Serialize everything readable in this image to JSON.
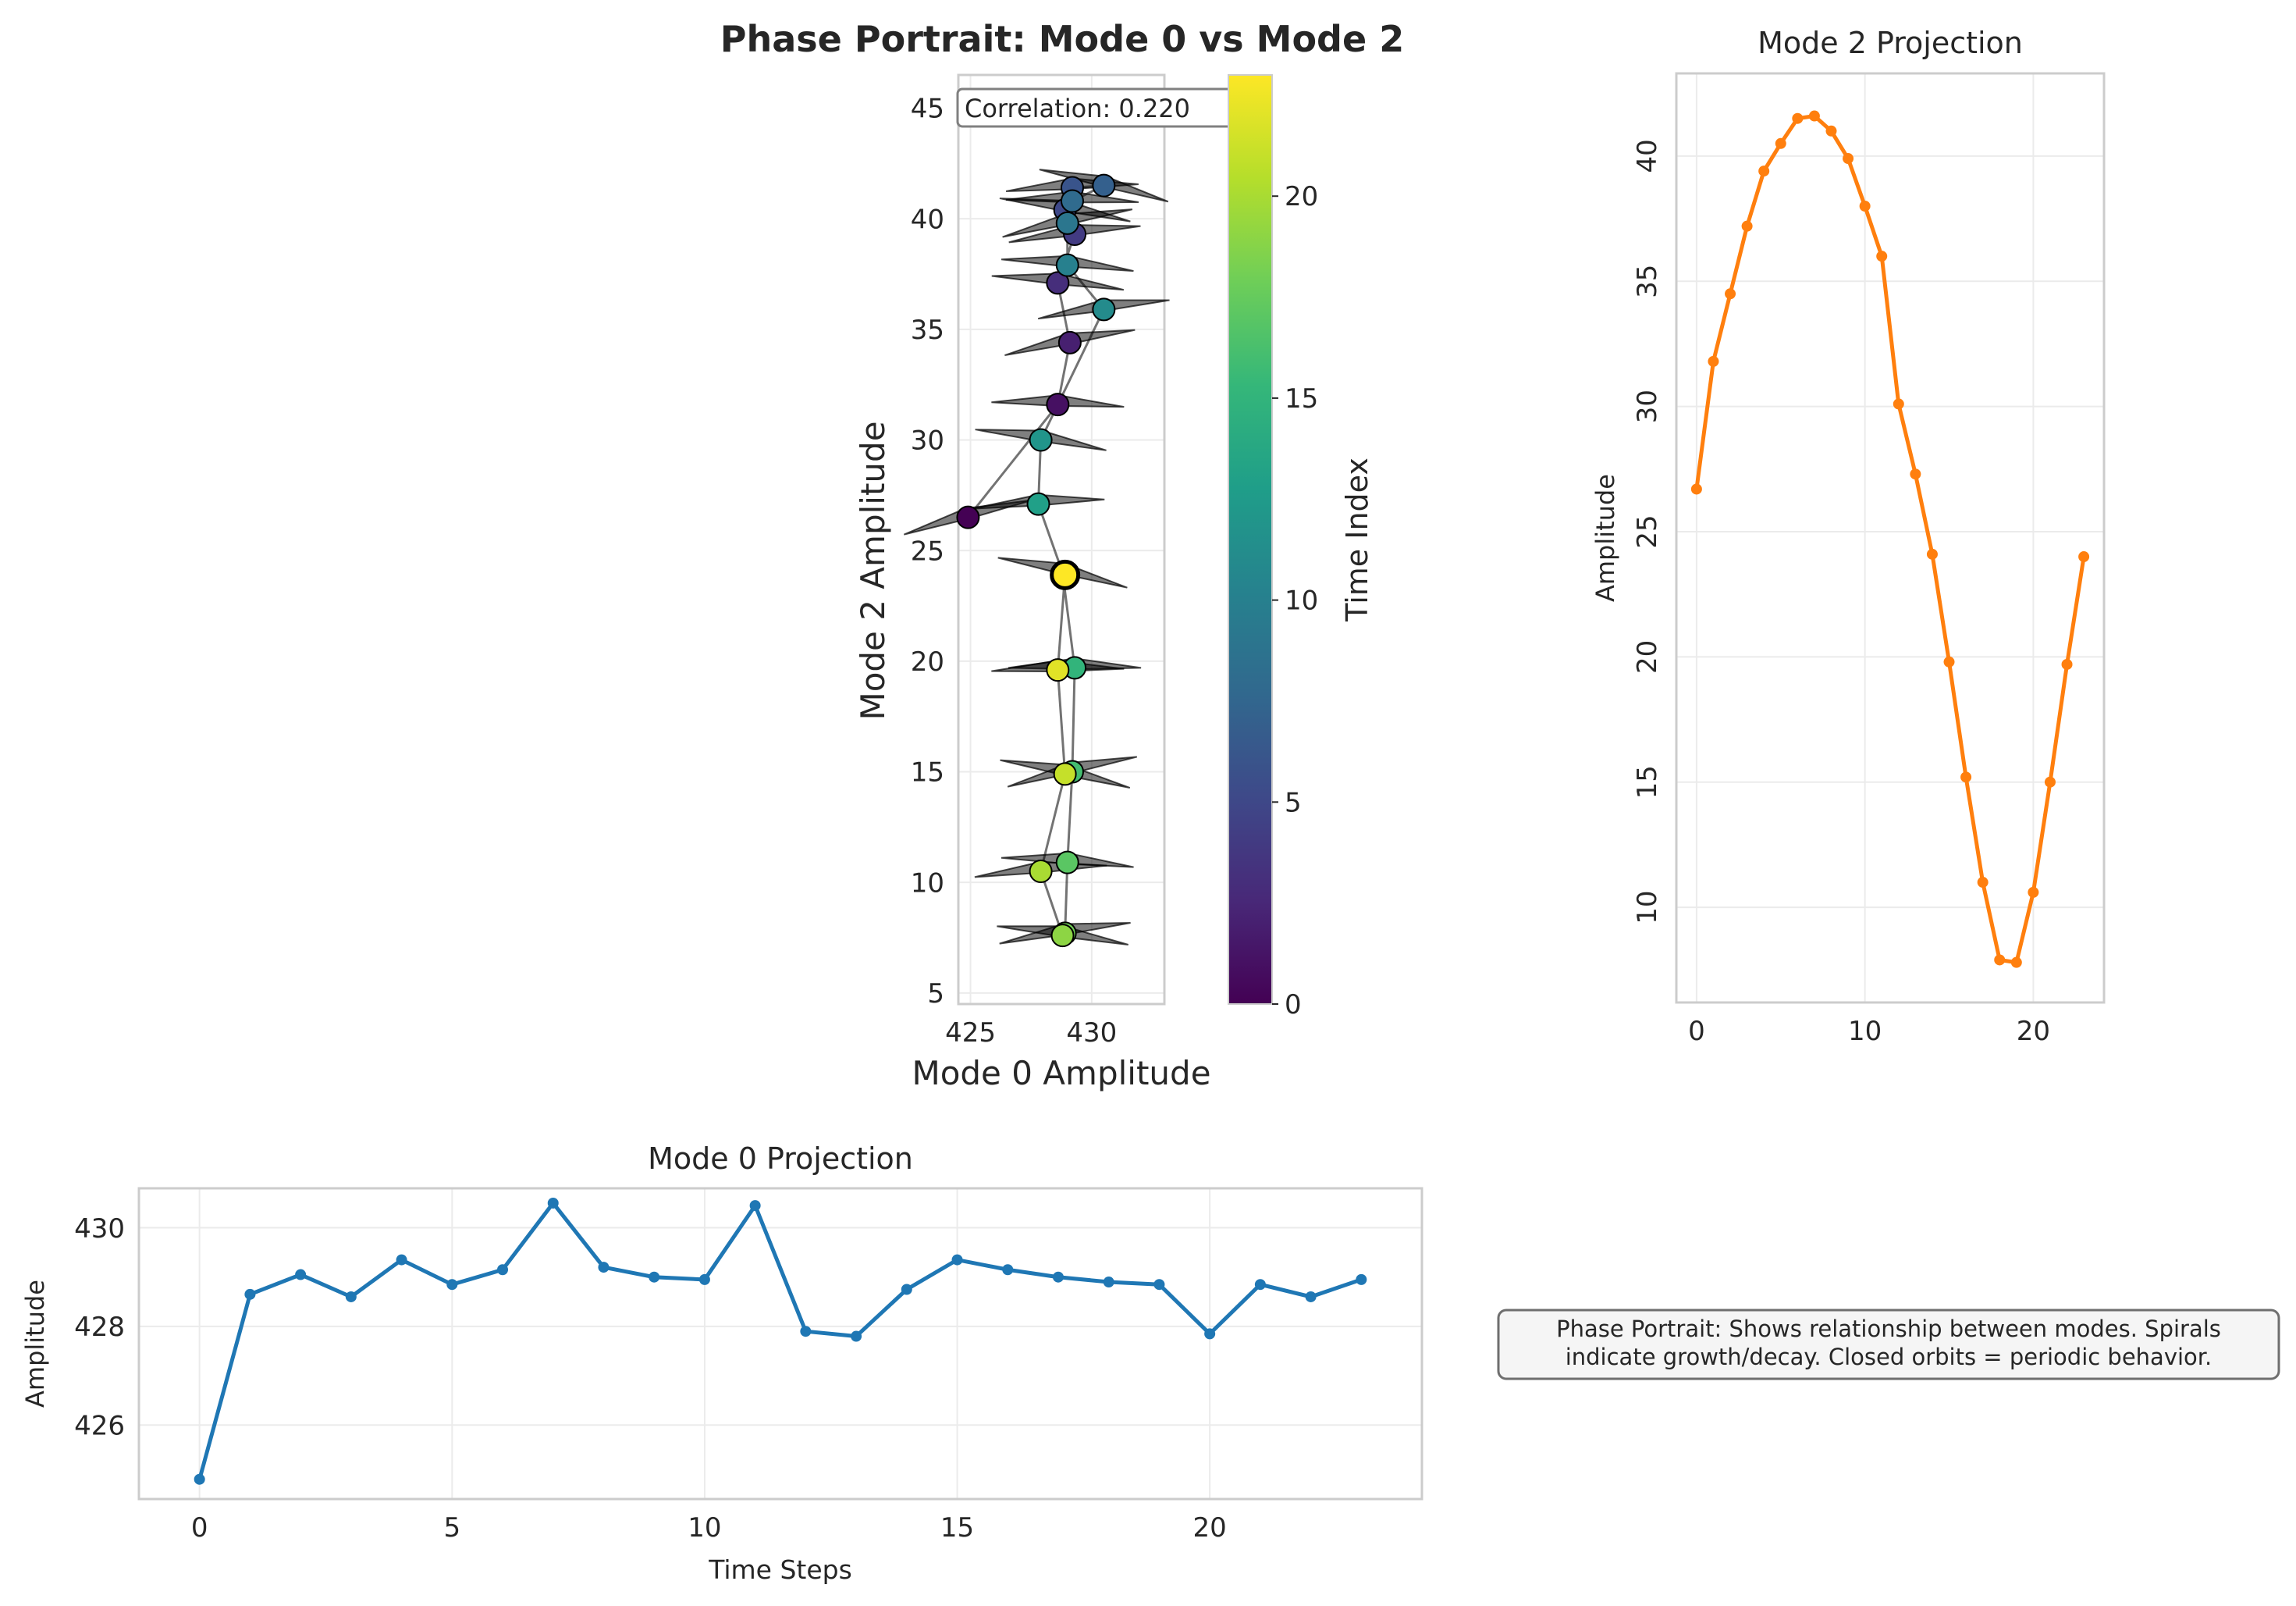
{
  "suptitle": "Phase Portrait: Mode 0 vs Mode 2",
  "colors": {
    "mode0_line": "#1f77b4",
    "mode2_line": "#ff7f0e",
    "grid": "#ebebeb",
    "spine": "#cccccc",
    "text": "#262626",
    "arrow": "#000000"
  },
  "colormap": "viridis",
  "chart_data": [
    {
      "id": "phase",
      "type": "scatter",
      "title": "",
      "xlabel": "Mode 0 Amplitude",
      "ylabel": "Mode 2 Amplitude",
      "xlim": [
        424.5,
        433
      ],
      "ylim": [
        4.5,
        46.5
      ],
      "xticks": [
        425,
        430
      ],
      "yticks": [
        5,
        10,
        15,
        20,
        25,
        30,
        35,
        40,
        45
      ],
      "grid": true,
      "points_connected_by_line": true,
      "annotation": "Correlation: 0.220",
      "x": [
        424.9,
        428.6,
        429.1,
        428.6,
        429.3,
        428.9,
        429.2,
        430.5,
        429.2,
        429.0,
        429.0,
        430.5,
        427.9,
        427.8,
        428.8,
        429.3,
        429.2,
        429.0,
        428.9,
        428.8,
        427.9,
        428.9,
        428.6,
        428.9
      ],
      "y": [
        26.5,
        31.6,
        34.4,
        37.1,
        39.3,
        40.4,
        41.4,
        41.5,
        40.8,
        39.8,
        37.9,
        35.9,
        30.0,
        27.1,
        24.0,
        19.7,
        15.0,
        10.9,
        7.7,
        7.6,
        10.5,
        14.9,
        19.6,
        23.9
      ],
      "c": [
        0,
        1,
        2,
        3,
        4,
        5,
        6,
        7,
        8,
        9,
        10,
        11,
        12,
        13,
        14,
        15,
        16,
        17,
        18,
        19,
        20,
        21,
        22,
        23
      ]
    },
    {
      "id": "colorbar",
      "type": "heatmap",
      "label": "Time Index",
      "range": [
        0,
        23
      ],
      "ticks": [
        0,
        5,
        10,
        15,
        20
      ]
    },
    {
      "id": "mode2",
      "type": "line",
      "title": "Mode 2 Projection",
      "xlabel": "",
      "ylabel": "Amplitude",
      "xlim": [
        -1.2,
        24.2
      ],
      "ylim": [
        6.2,
        43.3
      ],
      "xticks": [
        0,
        10,
        20
      ],
      "yticks": [
        10,
        15,
        20,
        25,
        30,
        35,
        40
      ],
      "grid": true,
      "x": [
        0,
        1,
        2,
        3,
        4,
        5,
        6,
        7,
        8,
        9,
        10,
        11,
        12,
        13,
        14,
        15,
        16,
        17,
        18,
        19,
        20,
        21,
        22,
        23
      ],
      "values": [
        26.7,
        31.8,
        34.5,
        37.2,
        39.4,
        40.5,
        41.5,
        41.6,
        41.0,
        39.9,
        38.0,
        36.0,
        30.1,
        27.3,
        24.1,
        19.8,
        15.2,
        11.0,
        7.9,
        7.8,
        10.6,
        15.0,
        19.7,
        24.0
      ]
    },
    {
      "id": "mode0",
      "type": "line",
      "title": "Mode 0 Projection",
      "xlabel": "Time Steps",
      "ylabel": "Amplitude",
      "xlim": [
        -1.2,
        24.2
      ],
      "ylim": [
        424.5,
        430.8
      ],
      "xticks": [
        0,
        5,
        10,
        15,
        20
      ],
      "yticks": [
        426,
        428,
        430
      ],
      "grid": true,
      "x": [
        0,
        1,
        2,
        3,
        4,
        5,
        6,
        7,
        8,
        9,
        10,
        11,
        12,
        13,
        14,
        15,
        16,
        17,
        18,
        19,
        20,
        21,
        22,
        23
      ],
      "values": [
        424.9,
        428.65,
        429.05,
        428.6,
        429.35,
        428.85,
        429.15,
        430.5,
        429.2,
        429.0,
        428.95,
        430.45,
        427.9,
        427.8,
        428.75,
        429.35,
        429.15,
        429.0,
        428.9,
        428.85,
        427.85,
        428.85,
        428.6,
        428.95
      ]
    }
  ],
  "note_box": {
    "line1": "Phase Portrait: Shows relationship between modes. Spirals",
    "line2": "indicate growth/decay. Closed orbits = periodic behavior."
  }
}
